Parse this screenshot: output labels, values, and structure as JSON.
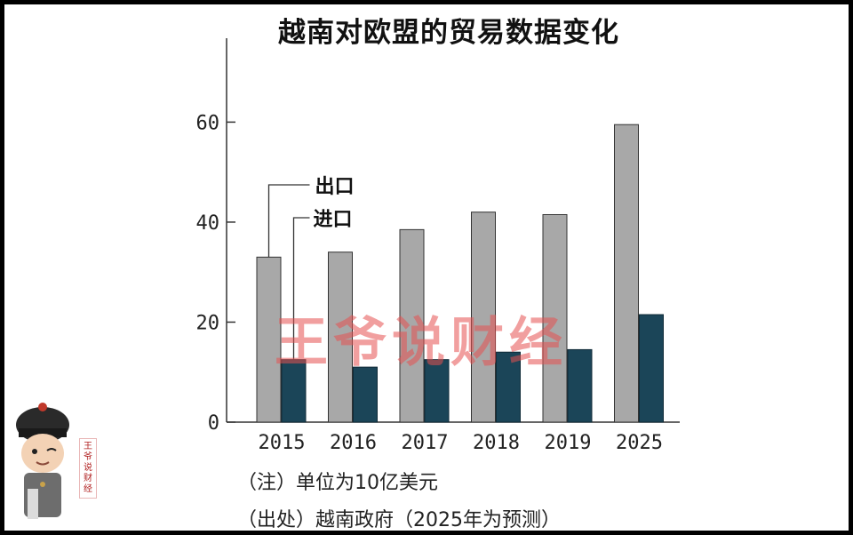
{
  "chart_data": {
    "type": "bar",
    "title": "越南对欧盟的贸易数据变化",
    "categories": [
      "2015",
      "2016",
      "2017",
      "2018",
      "2019",
      "2025"
    ],
    "series": [
      {
        "name": "出口",
        "values": [
          33,
          34,
          38.5,
          42,
          41.5,
          59.5
        ],
        "color": "#a8a8a8"
      },
      {
        "name": "进口",
        "values": [
          12.5,
          11,
          12.5,
          14,
          14.5,
          21.5
        ],
        "color": "#1b4558"
      }
    ],
    "yticks": [
      "0",
      "20",
      "40",
      "60"
    ],
    "ylim": [
      0,
      75
    ],
    "legend": "top-left, leader lines",
    "grid": false
  },
  "notes": {
    "unit": "（注）单位为10亿美元",
    "source": "（出处）越南政府（2025年为预测）"
  },
  "watermarks": {
    "center": "王爷说财经",
    "corner": "王爷说财经",
    "seal": "王爷说财经"
  }
}
